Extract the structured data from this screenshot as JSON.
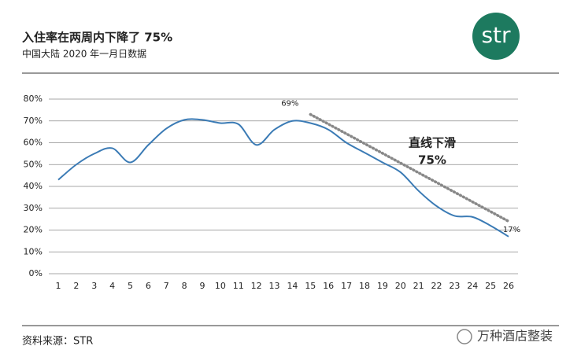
{
  "chart_data": {
    "type": "line",
    "title": "入住率在两周内下降了 75%",
    "subtitle": "中国大陆 2020 年一月日数据",
    "logo": "str",
    "source": "资料来源：STR",
    "watermark": "万种酒店整装",
    "categories": [
      "1",
      "2",
      "3",
      "4",
      "5",
      "6",
      "7",
      "8",
      "9",
      "10",
      "11",
      "12",
      "13",
      "14",
      "15",
      "16",
      "17",
      "18",
      "19",
      "20",
      "21",
      "22",
      "23",
      "24",
      "25",
      "26"
    ],
    "series": [
      {
        "name": null,
        "color": "#3b7bb5",
        "values": [
          43,
          50,
          55,
          57.5,
          51,
          59,
          66.5,
          70.5,
          70.5,
          69,
          68.5,
          59,
          66,
          70,
          69,
          66,
          60,
          55.5,
          51,
          46.5,
          38,
          31,
          26.5,
          26,
          22,
          17
        ],
        "value_labels": [
          null,
          null,
          null,
          null,
          null,
          null,
          null,
          null,
          null,
          null,
          null,
          null,
          null,
          null,
          "69%",
          null,
          null,
          null,
          null,
          null,
          null,
          null,
          null,
          null,
          null,
          "17%"
        ]
      }
    ],
    "trend": {
      "x": [
        "15",
        "26"
      ],
      "values": [
        73,
        24
      ],
      "color": "#888888",
      "label": [
        "直线下滑",
        "75%"
      ]
    },
    "ylim": [
      0,
      80
    ],
    "yticks": [
      {
        "value": 0,
        "label": "0%"
      },
      {
        "value": 10,
        "label": "10%"
      },
      {
        "value": 20,
        "label": "20%"
      },
      {
        "value": 30,
        "label": "30%"
      },
      {
        "value": 40,
        "label": "40%"
      },
      {
        "value": 50,
        "label": "50%"
      },
      {
        "value": 60,
        "label": "60%"
      },
      {
        "value": 70,
        "label": "70%"
      },
      {
        "value": 80,
        "label": "80%"
      }
    ],
    "grid": true
  }
}
